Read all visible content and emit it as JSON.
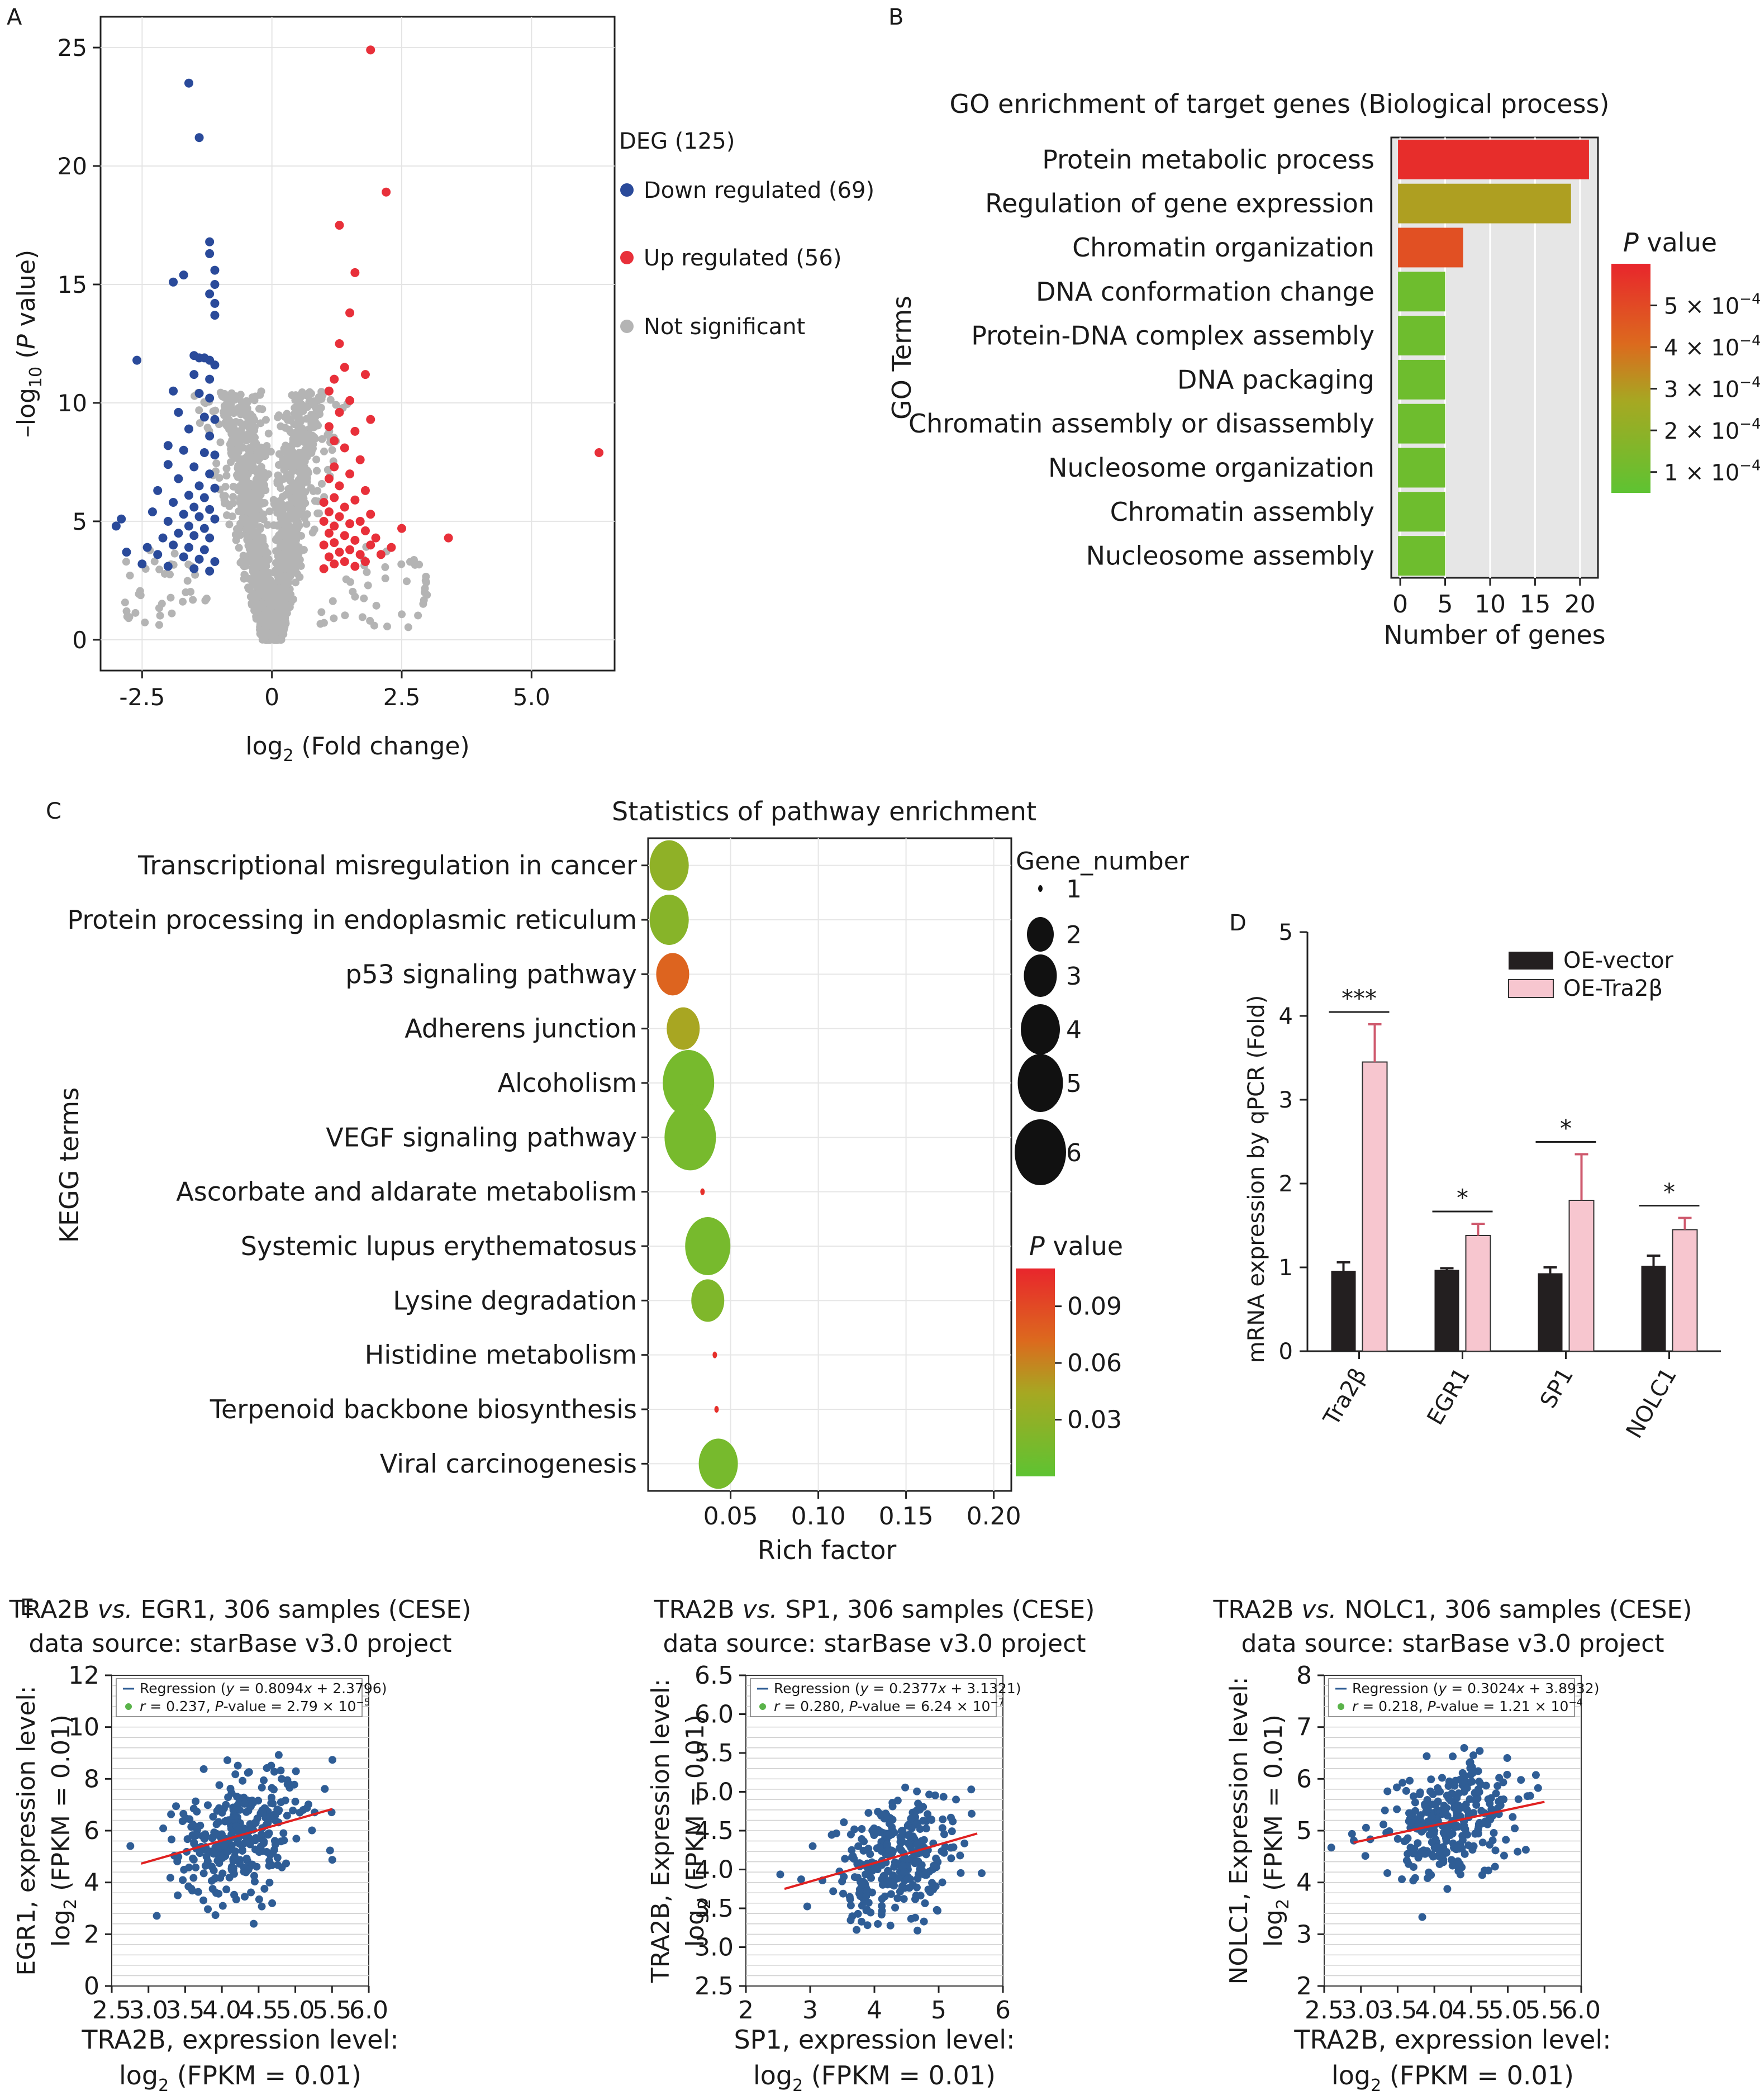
{
  "panel_letters": {
    "a": "A",
    "b": "B",
    "c": "C",
    "d": "D",
    "e": "E"
  },
  "colors": {
    "down": "#2a4a9a",
    "up": "#e8303a",
    "ns": "#b4b4b4",
    "grid_bg": "#e6e6e6",
    "bar_dark": "#231f20",
    "bar_pink": "#f7c6cf",
    "scatter": "#2f5d95",
    "regression": "#e02020"
  },
  "chart_data": [
    {
      "id": "A",
      "type": "scatter",
      "xlabel": "log",
      "xlabel_sub": "2",
      "xlabel_tail": " (Fold change)",
      "ylabel_pre": "–log",
      "ylabel_sub": "10",
      "ylabel_mid": " (",
      "ylabel_ital": "P",
      "ylabel_tail": " value)",
      "xlim": [
        -3.3,
        6.6
      ],
      "ylim": [
        -1.3,
        26.3
      ],
      "xticks": [
        "-2.5",
        "0",
        "2.5",
        "5.0"
      ],
      "xtick_values": [
        -2.5,
        0,
        2.5,
        5
      ],
      "yticks": [
        "0",
        "5",
        "10",
        "15",
        "20",
        "25"
      ],
      "ytick_values": [
        0,
        5,
        10,
        15,
        20,
        25
      ],
      "legend": {
        "title": "DEG (125)",
        "items": [
          {
            "label": "Down regulated (69)",
            "color": "#2a4a9a"
          },
          {
            "label": "Up regulated (56)",
            "color": "#e8303a"
          },
          {
            "label": "Not significant",
            "color": "#b4b4b4"
          }
        ]
      },
      "series": [
        {
          "name": "Down regulated (69)",
          "points": [
            [
              -1.6,
              23.5
            ],
            [
              -1.4,
              21.2
            ],
            [
              -1.2,
              16.8
            ],
            [
              -1.2,
              16.3
            ],
            [
              -1.7,
              15.4
            ],
            [
              -1.9,
              15.1
            ],
            [
              -1.1,
              15.6
            ],
            [
              -1.1,
              15.0
            ],
            [
              -1.2,
              14.6
            ],
            [
              -1.1,
              14.2
            ],
            [
              -1.1,
              13.7
            ],
            [
              -2.6,
              11.8
            ],
            [
              -1.5,
              12.0
            ],
            [
              -1.4,
              11.9
            ],
            [
              -1.3,
              11.9
            ],
            [
              -1.2,
              11.8
            ],
            [
              -1.1,
              11.6
            ],
            [
              -1.5,
              11.2
            ],
            [
              -1.2,
              11.0
            ],
            [
              -1.9,
              10.5
            ],
            [
              -1.4,
              10.4
            ],
            [
              -1.2,
              10.2
            ],
            [
              -1.8,
              9.6
            ],
            [
              -1.3,
              9.4
            ],
            [
              -1.1,
              9.3
            ],
            [
              -1.6,
              8.9
            ],
            [
              -1.2,
              8.6
            ],
            [
              -2.0,
              8.2
            ],
            [
              -1.7,
              8.0
            ],
            [
              -1.3,
              7.9
            ],
            [
              -1.1,
              7.8
            ],
            [
              -2.0,
              7.4
            ],
            [
              -1.5,
              7.3
            ],
            [
              -1.2,
              7.0
            ],
            [
              -1.8,
              6.8
            ],
            [
              -1.4,
              6.5
            ],
            [
              -1.1,
              6.4
            ],
            [
              -2.2,
              6.3
            ],
            [
              -1.6,
              6.1
            ],
            [
              -1.3,
              6.0
            ],
            [
              -1.9,
              5.8
            ],
            [
              -1.5,
              5.6
            ],
            [
              -1.2,
              5.5
            ],
            [
              -2.3,
              5.4
            ],
            [
              -1.7,
              5.3
            ],
            [
              -1.4,
              5.2
            ],
            [
              -1.1,
              5.1
            ],
            [
              -2.0,
              5.0
            ],
            [
              -1.6,
              4.8
            ],
            [
              -1.3,
              4.7
            ],
            [
              -2.9,
              5.1
            ],
            [
              -3.0,
              4.8
            ],
            [
              -1.8,
              4.5
            ],
            [
              -1.5,
              4.4
            ],
            [
              -1.2,
              4.3
            ],
            [
              -2.1,
              4.3
            ],
            [
              -1.9,
              4.0
            ],
            [
              -1.6,
              3.9
            ],
            [
              -1.3,
              3.8
            ],
            [
              -2.4,
              3.9
            ],
            [
              -2.8,
              3.7
            ],
            [
              -2.2,
              3.6
            ],
            [
              -1.7,
              3.5
            ],
            [
              -1.4,
              3.4
            ],
            [
              -1.1,
              3.3
            ],
            [
              -2.5,
              3.2
            ],
            [
              -2.0,
              3.1
            ],
            [
              -1.5,
              3.0
            ],
            [
              -1.2,
              2.9
            ]
          ]
        },
        {
          "name": "Up regulated (56)",
          "points": [
            [
              1.9,
              24.9
            ],
            [
              2.2,
              18.9
            ],
            [
              1.3,
              17.5
            ],
            [
              1.6,
              15.5
            ],
            [
              1.5,
              13.8
            ],
            [
              1.3,
              12.5
            ],
            [
              1.4,
              11.5
            ],
            [
              1.8,
              11.2
            ],
            [
              1.2,
              11.0
            ],
            [
              1.1,
              10.5
            ],
            [
              1.5,
              10.1
            ],
            [
              1.3,
              9.6
            ],
            [
              1.9,
              9.3
            ],
            [
              1.1,
              9.0
            ],
            [
              1.6,
              8.8
            ],
            [
              1.2,
              8.4
            ],
            [
              1.4,
              8.1
            ],
            [
              6.3,
              7.9
            ],
            [
              1.7,
              7.6
            ],
            [
              1.2,
              7.3
            ],
            [
              1.5,
              7.0
            ],
            [
              1.1,
              6.8
            ],
            [
              1.3,
              6.5
            ],
            [
              1.8,
              6.3
            ],
            [
              1.2,
              6.0
            ],
            [
              1.6,
              5.9
            ],
            [
              1.0,
              5.8
            ],
            [
              1.4,
              5.6
            ],
            [
              1.1,
              5.4
            ],
            [
              1.9,
              5.3
            ],
            [
              1.3,
              5.2
            ],
            [
              1.7,
              5.0
            ],
            [
              1.0,
              5.0
            ],
            [
              1.5,
              4.9
            ],
            [
              1.2,
              4.8
            ],
            [
              2.5,
              4.7
            ],
            [
              1.8,
              4.6
            ],
            [
              1.1,
              4.5
            ],
            [
              1.4,
              4.4
            ],
            [
              3.4,
              4.3
            ],
            [
              2.0,
              4.3
            ],
            [
              1.6,
              4.2
            ],
            [
              1.2,
              4.1
            ],
            [
              1.0,
              4.0
            ],
            [
              1.9,
              4.0
            ],
            [
              2.3,
              3.9
            ],
            [
              1.5,
              3.8
            ],
            [
              1.3,
              3.7
            ],
            [
              1.7,
              3.6
            ],
            [
              1.1,
              3.5
            ],
            [
              2.1,
              3.6
            ],
            [
              1.4,
              3.3
            ],
            [
              1.8,
              3.3
            ],
            [
              1.2,
              3.2
            ],
            [
              1.6,
              3.1
            ],
            [
              1.0,
              3.0
            ]
          ]
        }
      ]
    },
    {
      "id": "B",
      "type": "bar",
      "title": "GO enrichment of target genes (Biological process)",
      "xlabel": "Number of genes",
      "ylabel": "GO Terms",
      "xlim": [
        -1,
        22
      ],
      "xticks": [
        0,
        5,
        10,
        15,
        20
      ],
      "categories": [
        "Protein metabolic process",
        "Regulation of gene expression",
        "Chromatin organization",
        "DNA conformation change",
        "Protein-DNA complex assembly",
        "DNA packaging",
        "Chromatin assembly or disassembly",
        "Nucleosome organization",
        "Chromatin assembly",
        "Nucleosome assembly"
      ],
      "values": [
        21,
        19,
        7,
        5,
        5,
        5,
        5,
        5,
        5,
        5
      ],
      "pvalues": [
        0.00058,
        0.00029,
        0.00048,
        0.0001,
        0.0001,
        0.0001,
        0.0001,
        0.0001,
        0.0001,
        0.0001
      ],
      "colorbar": {
        "title_ital": "P",
        "title_tail": " value",
        "range": [
          5e-05,
          0.0006
        ],
        "ticks": [
          {
            "value": 0.0005,
            "base": "5 × 10",
            "exp": "−4"
          },
          {
            "value": 0.0004,
            "base": "4 × 10",
            "exp": "−4"
          },
          {
            "value": 0.0003,
            "base": "3 × 10",
            "exp": "−4"
          },
          {
            "value": 0.0002,
            "base": "2 × 10",
            "exp": "−4"
          },
          {
            "value": 0.0001,
            "base": "1 × 10",
            "exp": "−4"
          }
        ]
      }
    },
    {
      "id": "C",
      "type": "scatter",
      "title": "Statistics of pathway enrichment",
      "xlabel": "Rich factor",
      "ylabel": "KEGG terms",
      "xlim": [
        0.003,
        0.21
      ],
      "xticks": [
        "0.05",
        "0.10",
        "0.15",
        "0.20"
      ],
      "xtick_values": [
        0.05,
        0.1,
        0.15,
        0.2
      ],
      "categories": [
        "Transcriptional misregulation in cancer",
        "Protein processing in endoplasmic reticulum",
        "p53 signaling pathway",
        "Adherens junction",
        "Alcoholism",
        "VEGF signaling pathway",
        "Ascorbate and aldarate metabolism",
        "Systemic lupus erythematosus",
        "Lysine degradation",
        "Histidine metabolism",
        "Terpenoid backbone biosynthesis",
        "Viral carcinogenesis"
      ],
      "rich_factor": [
        0.015,
        0.015,
        0.017,
        0.023,
        0.026,
        0.027,
        0.034,
        0.037,
        0.037,
        0.041,
        0.042,
        0.043
      ],
      "gene_number": [
        4,
        4,
        3,
        3,
        6,
        6,
        1,
        5,
        3,
        1,
        1,
        4
      ],
      "pvalue": [
        0.03,
        0.025,
        0.075,
        0.045,
        0.015,
        0.015,
        0.105,
        0.015,
        0.02,
        0.105,
        0.105,
        0.015
      ],
      "size_legend": {
        "title": "Gene_number",
        "values": [
          1,
          2,
          3,
          4,
          5,
          6
        ],
        "labels": [
          "1",
          "2",
          "3",
          "4",
          "5",
          "6"
        ]
      },
      "colorbar": {
        "title_ital": "P",
        "title_tail": " value",
        "range": [
          0.0,
          0.11
        ],
        "ticks": [
          "0.09",
          "0.06",
          "0.03"
        ],
        "tick_values": [
          0.09,
          0.06,
          0.03
        ]
      }
    },
    {
      "id": "D",
      "type": "bar",
      "ylabel": "mRNA expression by qPCR (Fold)",
      "ylim": [
        0,
        5
      ],
      "yticks": [
        "0",
        "1",
        "2",
        "3",
        "4",
        "5"
      ],
      "categories": [
        "Tra2β",
        "EGR1",
        "SP1",
        "NOLC1"
      ],
      "series": [
        {
          "name": "OE-vector",
          "values": [
            0.96,
            0.97,
            0.93,
            1.02
          ],
          "errors": [
            0.1,
            0.02,
            0.07,
            0.12
          ]
        },
        {
          "name": "OE-Tra2β",
          "values": [
            3.45,
            1.38,
            1.8,
            1.45
          ],
          "errors": [
            0.45,
            0.14,
            0.55,
            0.14
          ]
        }
      ],
      "significance": [
        "***",
        "*",
        "*",
        "*"
      ]
    },
    {
      "id": "E1",
      "type": "scatter",
      "title_a": "TRA2B ",
      "title_it": "vs.",
      "title_b": " EGR1, 306 samples (CESE)",
      "subtitle": "data source: starBase v3.0 project",
      "xlabel_1": "TRA2B, expression level:",
      "xlabel_2": "log",
      "xlabel_sub": "2",
      "xlabel_3": " (FPKM = 0.01)",
      "ylabel_1": "EGR1, expression level:",
      "ylabel_2": "log",
      "ylabel_sub": "2",
      "ylabel_3": " (FPKM = 0.01)",
      "xlim": [
        2.5,
        6.0
      ],
      "ylim": [
        0,
        12
      ],
      "xticks": [
        "2.5",
        "3.0",
        "3.5",
        "4.0",
        "4.5",
        "5.0",
        "5.5",
        "6.0"
      ],
      "yticks": [
        "0",
        "2",
        "4",
        "6",
        "8",
        "10",
        "12"
      ],
      "regression": {
        "slope": 0.8094,
        "intercept": 2.3796,
        "x_range": [
          2.9,
          5.5
        ],
        "label_pre": "Regression (",
        "label_y": "y",
        "label_mid": " = 0.8094",
        "label_x": "x",
        "label_post": " + 2.3796)",
        "stats_r": "r",
        "stats_a": " = 0.237, ",
        "stats_p": "P",
        "stats_b": "-value = 2.79 × 10",
        "stats_exp": "−5"
      },
      "seed": 11,
      "n": 306,
      "x_mean": 4.2,
      "x_sd": 0.45,
      "y_sd": 1.3
    },
    {
      "id": "E2",
      "type": "scatter",
      "title_a": "TRA2B ",
      "title_it": "vs.",
      "title_b": " SP1, 306 samples (CESE)",
      "subtitle": "data source: starBase v3.0 project",
      "xlabel_1": "SP1, expression level:",
      "xlabel_2": "log",
      "xlabel_sub": "2",
      "xlabel_3": " (FPKM = 0.01)",
      "ylabel_1": "TRA2B, Expression level:",
      "ylabel_2": "log",
      "ylabel_sub": "2",
      "ylabel_3": " (FPKM = 0.01)",
      "xlim": [
        2,
        6
      ],
      "ylim": [
        2.5,
        6.5
      ],
      "xticks": [
        "2",
        "3",
        "4",
        "5",
        "6"
      ],
      "yticks": [
        "2.5",
        "3.0",
        "3.5",
        "4.0",
        "4.5",
        "5.0",
        "5.5",
        "6.0",
        "6.5"
      ],
      "regression": {
        "slope": 0.2377,
        "intercept": 3.1321,
        "x_range": [
          2.6,
          5.6
        ],
        "label_pre": "Regression (",
        "label_y": "y",
        "label_mid": " = 0.2377",
        "label_x": "x",
        "label_post": " + 3.1321)",
        "stats_r": "r",
        "stats_a": " = 0.280, ",
        "stats_p": "P",
        "stats_b": "-value = 6.24 × 10",
        "stats_exp": "−7"
      },
      "seed": 23,
      "n": 306,
      "x_mean": 4.3,
      "x_sd": 0.5,
      "y_sd": 0.38
    },
    {
      "id": "E3",
      "type": "scatter",
      "title_a": "TRA2B ",
      "title_it": "vs.",
      "title_b": " NOLC1, 306 samples (CESE)",
      "subtitle": "data source: starBase v3.0 project",
      "xlabel_1": "TRA2B, expression level:",
      "xlabel_2": "log",
      "xlabel_sub": "2",
      "xlabel_3": " (FPKM = 0.01)",
      "ylabel_1": "NOLC1, Expression level:",
      "ylabel_2": "log",
      "ylabel_sub": "2",
      "ylabel_3": " (FPKM = 0.01)",
      "xlim": [
        2.5,
        6.0
      ],
      "ylim": [
        2,
        8
      ],
      "xticks": [
        "2.5",
        "3.0",
        "3.5",
        "4.0",
        "4.5",
        "5.0",
        "5.5",
        "6.0"
      ],
      "yticks": [
        "2",
        "3",
        "4",
        "5",
        "6",
        "7",
        "8"
      ],
      "regression": {
        "slope": 0.3024,
        "intercept": 3.8932,
        "x_range": [
          2.9,
          5.5
        ],
        "label_pre": "Regression (",
        "label_y": "y",
        "label_mid": " = 0.3024",
        "label_x": "x",
        "label_post": " + 3.8932)",
        "stats_r": "r",
        "stats_a": " = 0.218, ",
        "stats_p": "P",
        "stats_b": "-value = 1.21 × 10",
        "stats_exp": "−4"
      },
      "seed": 37,
      "n": 306,
      "x_mean": 4.2,
      "x_sd": 0.45,
      "y_sd": 0.55
    }
  ]
}
